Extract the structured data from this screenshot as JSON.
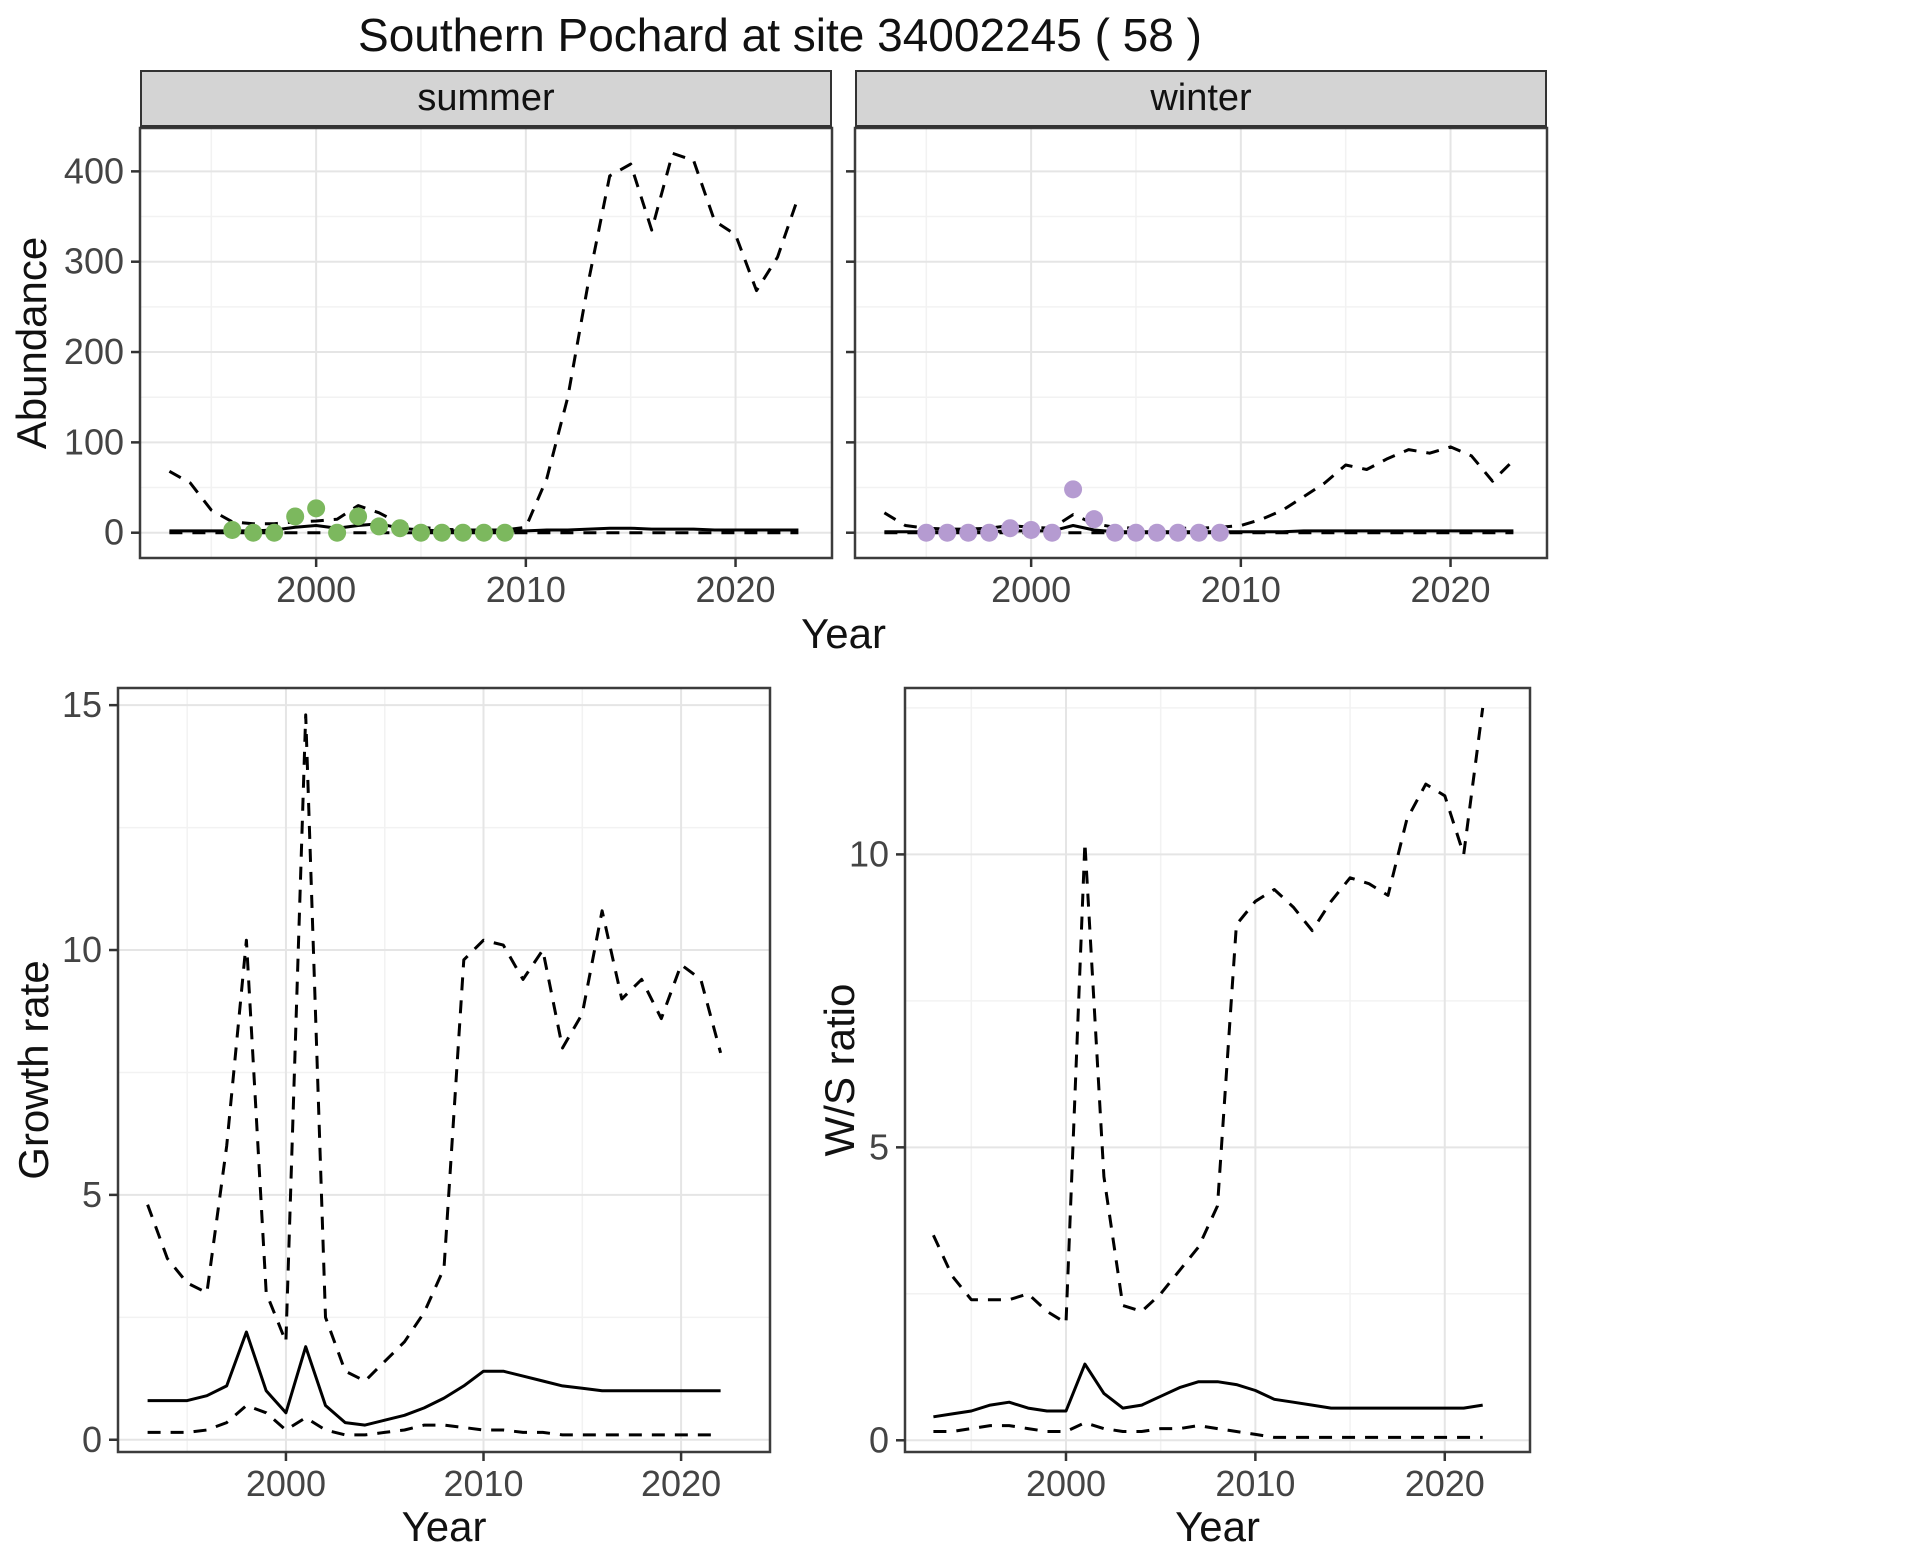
{
  "title": "Southern Pochard at site 34002245 ( 58 )",
  "facets": [
    {
      "label": "summer"
    },
    {
      "label": "winter"
    }
  ],
  "axes": {
    "abundance_label": "Abundance",
    "growth_label": "Growth rate",
    "ws_label": "W/S ratio",
    "year_label": "Year"
  },
  "colors": {
    "summer_points": "#7cb85e",
    "winter_points": "#b59bd1",
    "line": "#000000",
    "strip_bg": "#d4d4d4",
    "strip_border": "#333333",
    "panel_border": "#3c3c3c",
    "grid_major": "#e5e5e5",
    "grid_minor": "#f2f2f2",
    "tick_mark": "#333333",
    "tick_text": "#444444"
  },
  "chart_data": [
    {
      "id": "abundance-summer",
      "type": "line",
      "title": "summer",
      "xlabel": "Year",
      "ylabel": "Abundance",
      "xlim": [
        1991.6,
        2024.6
      ],
      "ylim": [
        -28,
        448
      ],
      "xticks": [
        2000,
        2010,
        2020
      ],
      "yticks": [
        0,
        100,
        200,
        300,
        400
      ],
      "show_yticklabels": true,
      "grid": true,
      "x": [
        1993,
        1994,
        1995,
        1996,
        1997,
        1998,
        1999,
        2000,
        2001,
        2002,
        2003,
        2004,
        2005,
        2006,
        2007,
        2008,
        2009,
        2010,
        2011,
        2012,
        2013,
        2014,
        2015,
        2016,
        2017,
        2018,
        2019,
        2020,
        2021,
        2022,
        2023
      ],
      "series": [
        {
          "name": "upper_ci",
          "style": "dashed",
          "values": [
            68,
            55,
            25,
            12,
            10,
            10,
            12,
            13,
            15,
            30,
            22,
            10,
            6,
            4,
            3,
            3,
            3,
            6,
            60,
            150,
            280,
            395,
            408,
            335,
            420,
            412,
            345,
            330,
            268,
            305,
            372
          ]
        },
        {
          "name": "median",
          "style": "solid",
          "values": [
            2,
            2,
            2,
            2,
            2,
            3,
            6,
            8,
            5,
            8,
            10,
            5,
            3,
            2,
            2,
            2,
            2,
            2,
            3,
            3,
            4,
            5,
            5,
            4,
            4,
            4,
            3,
            3,
            3,
            3,
            3
          ]
        },
        {
          "name": "lower_ci",
          "style": "dashed",
          "values": [
            0,
            0,
            0,
            0,
            0,
            0,
            0,
            0,
            0,
            0,
            0,
            0,
            0,
            0,
            0,
            0,
            0,
            0,
            0,
            0,
            0,
            0,
            0,
            0,
            0,
            0,
            0,
            0,
            0,
            0,
            0
          ]
        }
      ],
      "points": {
        "name": "observed_counts_summer",
        "color_key": "summer_points",
        "x": [
          1996,
          1997,
          1998,
          1999,
          2000,
          2001,
          2002,
          2003,
          2004,
          2005,
          2006,
          2007,
          2008,
          2009
        ],
        "y": [
          3,
          0,
          0,
          18,
          27,
          0,
          18,
          7,
          5,
          0,
          0,
          0,
          0,
          0
        ]
      }
    },
    {
      "id": "abundance-winter",
      "type": "line",
      "title": "winter",
      "xlabel": "Year",
      "ylabel": "Abundance",
      "xlim": [
        1991.6,
        2024.6
      ],
      "ylim": [
        -28,
        448
      ],
      "xticks": [
        2000,
        2010,
        2020
      ],
      "yticks": [
        0,
        100,
        200,
        300,
        400
      ],
      "show_yticklabels": false,
      "grid": true,
      "x": [
        1993,
        1994,
        1995,
        1996,
        1997,
        1998,
        1999,
        2000,
        2001,
        2002,
        2003,
        2004,
        2005,
        2006,
        2007,
        2008,
        2009,
        2010,
        2011,
        2012,
        2013,
        2014,
        2015,
        2016,
        2017,
        2018,
        2019,
        2020,
        2021,
        2022,
        2023
      ],
      "series": [
        {
          "name": "upper_ci",
          "style": "dashed",
          "values": [
            22,
            8,
            5,
            4,
            4,
            5,
            8,
            6,
            5,
            20,
            10,
            6,
            5,
            5,
            5,
            5,
            6,
            8,
            15,
            25,
            40,
            55,
            75,
            70,
            82,
            92,
            88,
            95,
            85,
            57,
            80
          ]
        },
        {
          "name": "median",
          "style": "solid",
          "values": [
            1,
            1,
            1,
            1,
            1,
            1,
            2,
            2,
            2,
            8,
            3,
            1,
            1,
            1,
            1,
            1,
            1,
            1,
            1,
            1,
            2,
            2,
            2,
            2,
            2,
            2,
            2,
            2,
            2,
            2,
            2
          ]
        },
        {
          "name": "lower_ci",
          "style": "dashed",
          "values": [
            0,
            0,
            0,
            0,
            0,
            0,
            0,
            0,
            0,
            0,
            0,
            0,
            0,
            0,
            0,
            0,
            0,
            0,
            0,
            0,
            0,
            0,
            0,
            0,
            0,
            0,
            0,
            0,
            0,
            0,
            0
          ]
        }
      ],
      "points": {
        "name": "observed_counts_winter",
        "color_key": "winter_points",
        "x": [
          1995,
          1996,
          1997,
          1998,
          1999,
          2000,
          2001,
          2002,
          2003,
          2004,
          2005,
          2006,
          2007,
          2008,
          2009
        ],
        "y": [
          0,
          0,
          0,
          0,
          5,
          3,
          0,
          48,
          15,
          0,
          0,
          0,
          0,
          0,
          0
        ]
      }
    },
    {
      "id": "growth-rate",
      "type": "line",
      "title": "Growth rate",
      "xlabel": "Year",
      "ylabel": "Growth rate",
      "xlim": [
        1991.5,
        2024.5
      ],
      "ylim": [
        -0.25,
        15.35
      ],
      "xticks": [
        2000,
        2010,
        2020
      ],
      "yticks": [
        0,
        5,
        10,
        15
      ],
      "show_yticklabels": true,
      "grid": true,
      "x": [
        1993,
        1994,
        1995,
        1996,
        1997,
        1998,
        1999,
        2000,
        2001,
        2002,
        2003,
        2004,
        2005,
        2006,
        2007,
        2008,
        2009,
        2010,
        2011,
        2012,
        2013,
        2014,
        2015,
        2016,
        2017,
        2018,
        2019,
        2020,
        2021,
        2022
      ],
      "series": [
        {
          "name": "upper_ci",
          "style": "dashed",
          "values": [
            4.8,
            3.7,
            3.2,
            3.0,
            6.0,
            10.2,
            3.0,
            2.0,
            14.8,
            2.5,
            1.4,
            1.2,
            1.6,
            2.0,
            2.6,
            3.5,
            9.8,
            10.2,
            10.1,
            9.4,
            10.0,
            8.0,
            8.7,
            10.8,
            9.0,
            9.4,
            8.6,
            9.7,
            9.4,
            7.9
          ]
        },
        {
          "name": "median",
          "style": "solid",
          "values": [
            0.8,
            0.8,
            0.8,
            0.9,
            1.1,
            2.2,
            1.0,
            0.55,
            1.9,
            0.7,
            0.35,
            0.3,
            0.4,
            0.5,
            0.65,
            0.85,
            1.1,
            1.4,
            1.4,
            1.3,
            1.2,
            1.1,
            1.05,
            1.0,
            1.0,
            1.0,
            1.0,
            1.0,
            1.0,
            1.0
          ]
        },
        {
          "name": "lower_ci",
          "style": "dashed",
          "values": [
            0.15,
            0.15,
            0.15,
            0.2,
            0.35,
            0.7,
            0.55,
            0.2,
            0.45,
            0.2,
            0.1,
            0.1,
            0.15,
            0.2,
            0.3,
            0.3,
            0.25,
            0.2,
            0.2,
            0.15,
            0.15,
            0.1,
            0.1,
            0.1,
            0.1,
            0.1,
            0.1,
            0.1,
            0.1,
            0.1
          ]
        }
      ],
      "points": null
    },
    {
      "id": "ws-ratio",
      "type": "line",
      "title": "W/S ratio",
      "xlabel": "Year",
      "ylabel": "W/S ratio",
      "xlim": [
        1991.5,
        2024.5
      ],
      "ylim": [
        -0.2,
        12.84
      ],
      "xticks": [
        2000,
        2010,
        2020
      ],
      "yticks": [
        0,
        5,
        10
      ],
      "show_yticklabels": true,
      "grid": true,
      "x": [
        1993,
        1994,
        1995,
        1996,
        1997,
        1998,
        1999,
        2000,
        2001,
        2002,
        2003,
        2004,
        2005,
        2006,
        2007,
        2008,
        2009,
        2010,
        2011,
        2012,
        2013,
        2014,
        2015,
        2016,
        2017,
        2018,
        2019,
        2020,
        2021,
        2022
      ],
      "series": [
        {
          "name": "upper_ci",
          "style": "dashed",
          "values": [
            3.5,
            2.8,
            2.4,
            2.4,
            2.4,
            2.5,
            2.2,
            2.0,
            10.2,
            4.5,
            2.3,
            2.2,
            2.5,
            2.9,
            3.3,
            4.0,
            8.8,
            9.2,
            9.4,
            9.1,
            8.7,
            9.2,
            9.6,
            9.5,
            9.3,
            10.6,
            11.2,
            11.0,
            10.0,
            12.5
          ]
        },
        {
          "name": "median",
          "style": "solid",
          "values": [
            0.4,
            0.45,
            0.5,
            0.6,
            0.65,
            0.55,
            0.5,
            0.5,
            1.3,
            0.8,
            0.55,
            0.6,
            0.75,
            0.9,
            1.0,
            1.0,
            0.95,
            0.85,
            0.7,
            0.65,
            0.6,
            0.55,
            0.55,
            0.55,
            0.55,
            0.55,
            0.55,
            0.55,
            0.55,
            0.6
          ]
        },
        {
          "name": "lower_ci",
          "style": "dashed",
          "values": [
            0.15,
            0.15,
            0.2,
            0.25,
            0.25,
            0.2,
            0.15,
            0.15,
            0.3,
            0.2,
            0.15,
            0.15,
            0.2,
            0.2,
            0.25,
            0.2,
            0.15,
            0.1,
            0.05,
            0.05,
            0.05,
            0.05,
            0.05,
            0.05,
            0.05,
            0.05,
            0.05,
            0.05,
            0.05,
            0.05
          ]
        }
      ],
      "points": null
    }
  ]
}
